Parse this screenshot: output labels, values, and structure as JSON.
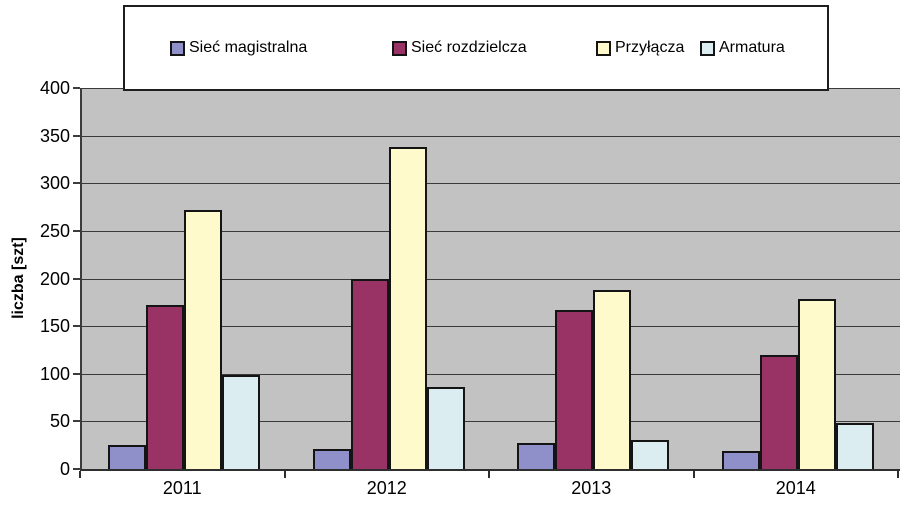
{
  "chart_data": {
    "type": "bar",
    "categories": [
      "2011",
      "2012",
      "2013",
      "2014"
    ],
    "series": [
      {
        "name": "Sieć magistralna",
        "color": "#8F90C9",
        "values": [
          25,
          21,
          27,
          19
        ]
      },
      {
        "name": "Sieć rozdzielcza",
        "color": "#993366",
        "values": [
          172,
          199,
          167,
          120
        ]
      },
      {
        "name": "Przyłącza",
        "color": "#FFFACC",
        "values": [
          272,
          338,
          188,
          178
        ]
      },
      {
        "name": "Armatura",
        "color": "#DCEDF1",
        "values": [
          99,
          86,
          30,
          48
        ]
      }
    ],
    "title": "",
    "xlabel": "",
    "ylabel": "liczba [szt]",
    "ylim": [
      0,
      400
    ],
    "ytick_step": 50,
    "ytick_labels": [
      "0",
      "50",
      "100",
      "150",
      "200",
      "250",
      "300",
      "350",
      "400"
    ],
    "grid": true,
    "legend_position": "top",
    "colors": {
      "plot_background": "#C2C2C2",
      "gridline": "#3A3A3A",
      "bar_border": "#141414",
      "axis": "#3C3C3C",
      "text": "#000000",
      "legend_background": "#FFFFFF",
      "legend_border": "#1E1E1E"
    }
  }
}
